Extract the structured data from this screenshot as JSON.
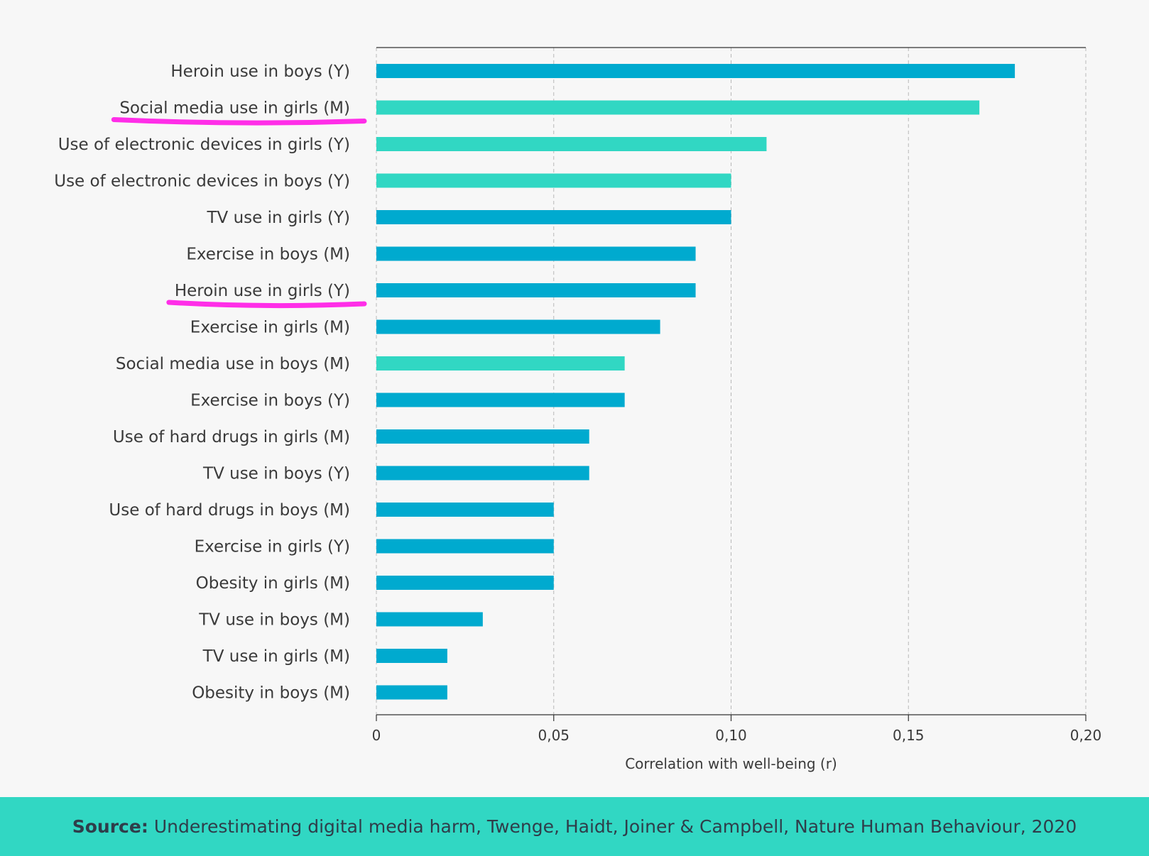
{
  "colors": {
    "background": "#f7f7f7",
    "bar_primary": "#00aacf",
    "bar_digital": "#31d7c3",
    "highlight": "#ff2ee8",
    "text": "#3a3a3a",
    "footer": "#31d7c3"
  },
  "chart_data": {
    "type": "bar",
    "orientation": "horizontal",
    "xlabel": "Correlation with well-being (r)",
    "xlim": [
      0,
      0.2
    ],
    "xticks": [
      0,
      0.05,
      0.1,
      0.15,
      0.2
    ],
    "xtick_labels": [
      "0",
      "0,05",
      "0,10",
      "0,15",
      "0,20"
    ],
    "grid": "vertical dashed",
    "categories": [
      "Heroin use in boys (Y)",
      "Social media use in girls (M)",
      "Use of electronic devices in girls (Y)",
      "Use of electronic devices in boys (Y)",
      "TV use in girls (Y)",
      "Exercise in boys (M)",
      "Heroin use in girls (Y)",
      "Exercise in girls (M)",
      "Social media use in boys (M)",
      "Exercise in boys (Y)",
      "Use of hard drugs in girls (M)",
      "TV use in boys (Y)",
      "Use of hard drugs in boys (M)",
      "Exercise in girls (Y)",
      "Obesity in girls (M)",
      "TV use in boys (M)",
      "TV use in girls (M)",
      "Obesity in boys (M)"
    ],
    "values": [
      0.18,
      0.17,
      0.11,
      0.1,
      0.1,
      0.09,
      0.09,
      0.08,
      0.07,
      0.07,
      0.06,
      0.06,
      0.05,
      0.05,
      0.05,
      0.03,
      0.02,
      0.02
    ],
    "digital_media": [
      false,
      true,
      true,
      true,
      false,
      false,
      false,
      false,
      true,
      false,
      false,
      false,
      false,
      false,
      false,
      false,
      false,
      false
    ],
    "highlighted": [
      false,
      true,
      false,
      false,
      false,
      false,
      true,
      false,
      false,
      false,
      false,
      false,
      false,
      false,
      false,
      false,
      false,
      false
    ]
  },
  "footer": {
    "source_label": "Source:",
    "source_text": "Underestimating digital media harm, Twenge, Haidt, Joiner & Campbell, Nature Human Behaviour, 2020"
  }
}
